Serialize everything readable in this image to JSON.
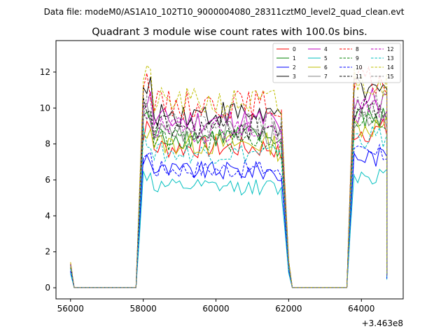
{
  "suptitle": "Data file: modeM0/AS1A10_102T10_9000004080_28311cztM0_level2_quad_clean.evt",
  "chart_data": {
    "type": "line",
    "title": "Quadrant 3 module wise count rates with 100.0s bins.",
    "xlabel": "",
    "ylabel": "",
    "x_offset_label": "+3.463e8",
    "xlim": [
      55600,
      65150
    ],
    "ylim": [
      -0.62,
      13.75
    ],
    "xticks": [
      56000,
      58000,
      60000,
      62000,
      64000
    ],
    "yticks": [
      0,
      2,
      4,
      6,
      8,
      10,
      12
    ],
    "grid": false,
    "legend_position": "top-right",
    "legend_columns": 4,
    "series_levels": [
      {
        "name": "0",
        "color": "#ff0000",
        "dash": "solid",
        "level": 7.8
      },
      {
        "name": "1",
        "color": "#008000",
        "dash": "solid",
        "level": 8.4
      },
      {
        "name": "2",
        "color": "#0000ff",
        "dash": "solid",
        "level": 6.5
      },
      {
        "name": "3",
        "color": "#000000",
        "dash": "solid",
        "level": 9.7
      },
      {
        "name": "4",
        "color": "#bf00bf",
        "dash": "solid",
        "level": 9.3
      },
      {
        "name": "5",
        "color": "#00bfbf",
        "dash": "solid",
        "level": 5.6
      },
      {
        "name": "6",
        "color": "#bfbf00",
        "dash": "solid",
        "level": 8.0
      },
      {
        "name": "7",
        "color": "#808080",
        "dash": "solid",
        "level": 8.6
      },
      {
        "name": "8",
        "color": "#ff0000",
        "dash": "dashed",
        "level": 10.2
      },
      {
        "name": "9",
        "color": "#008000",
        "dash": "dashed",
        "level": 8.2
      },
      {
        "name": "10",
        "color": "#0000ff",
        "dash": "dashed",
        "level": 6.6
      },
      {
        "name": "11",
        "color": "#000000",
        "dash": "dashed",
        "level": 8.9
      },
      {
        "name": "12",
        "color": "#bf00bf",
        "dash": "dashed",
        "level": 8.8
      },
      {
        "name": "13",
        "color": "#00bfbf",
        "dash": "dashed",
        "level": 7.5
      },
      {
        "name": "14",
        "color": "#bfbf00",
        "dash": "dashed",
        "level": 10.3
      },
      {
        "name": "15",
        "color": "#808080",
        "dash": "dashed",
        "level": 9.1
      }
    ],
    "segments": [
      {
        "type": "start",
        "x": [
          56000,
          56100
        ],
        "y_scale": [
          0.14,
          0.0
        ]
      },
      {
        "type": "zero",
        "x_start": 56100,
        "x_end": 57800
      },
      {
        "type": "rise",
        "x": [
          57800,
          57900,
          58000
        ],
        "y_scale": [
          0.0,
          0.55,
          1.1
        ]
      },
      {
        "type": "plateau",
        "x_start": 58000,
        "x_end": 61800,
        "step": 100
      },
      {
        "type": "fall",
        "x": [
          61800,
          61900,
          62000,
          62100
        ],
        "y_scale": [
          0.95,
          0.55,
          0.15,
          0.0
        ]
      },
      {
        "type": "zero",
        "x_start": 62100,
        "x_end": 63600
      },
      {
        "type": "rise",
        "x": [
          63600,
          63700,
          63800
        ],
        "y_scale": [
          0.0,
          0.6,
          1.15
        ]
      },
      {
        "type": "plateau2",
        "x_start": 63800,
        "x_end": 64700,
        "step": 100
      },
      {
        "type": "end",
        "x": [
          64700
        ],
        "y_scale": [
          0.08
        ]
      }
    ]
  }
}
